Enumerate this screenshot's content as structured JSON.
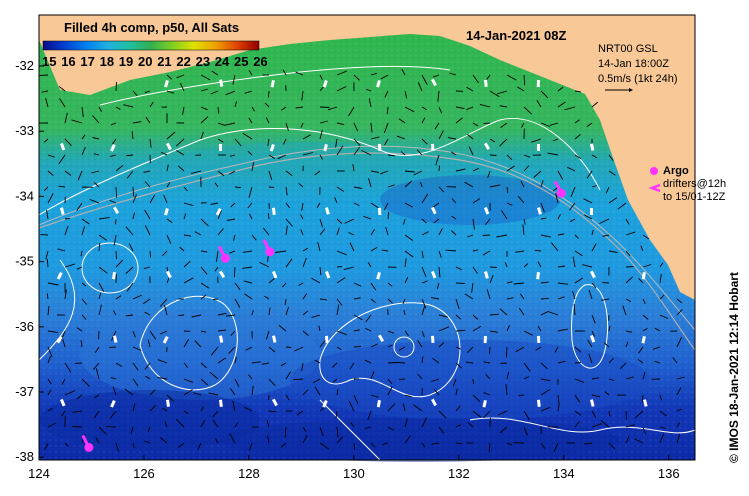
{
  "map": {
    "date_title": "14-Jan-2021 08Z",
    "colorbar": {
      "title": "Filled 4h comp, p50, All Sats",
      "ticks": [
        "15",
        "16",
        "17",
        "18",
        "19",
        "20",
        "21",
        "22",
        "23",
        "24",
        "25",
        "26"
      ],
      "colors": [
        "#1a1aa0",
        "#0033cc",
        "#0066e6",
        "#1a99e6",
        "#26c0b0",
        "#33b066",
        "#66c21a",
        "#aadd11",
        "#e6e600",
        "#f0a000",
        "#e64d00",
        "#b30000"
      ]
    },
    "current_legend": {
      "line1": "NRT00 GSL",
      "line2": "14-Jan 18:00Z",
      "line3": "0.5m/s (1kt 24h)"
    },
    "argo_legend": {
      "argo_label": "Argo",
      "drifters_line1": "drifters@12h",
      "drifters_line2": "to 15/01-12Z"
    },
    "credit": "© IMOS 18-Jan-2021 12:14 Hobart",
    "x_ticks": [
      "124",
      "126",
      "128",
      "130",
      "132",
      "134",
      "136"
    ],
    "y_ticks": [
      "-32",
      "-33",
      "-34",
      "-35",
      "-36",
      "-37",
      "-38"
    ],
    "colors": {
      "land": "#f8c896",
      "warm_band": "#3cb45a",
      "mid_band": "#14a0dc",
      "cool_band": "#1e64d2",
      "cold_band": "#0a28b4",
      "argo": "#ff33ff",
      "contour": "#ffffff"
    },
    "drifters": [
      {
        "lon": 127.55,
        "lat": -34.95
      },
      {
        "lon": 128.4,
        "lat": -34.85
      },
      {
        "lon": 133.95,
        "lat": -33.95
      },
      {
        "lon": 124.95,
        "lat": -37.85
      }
    ]
  }
}
